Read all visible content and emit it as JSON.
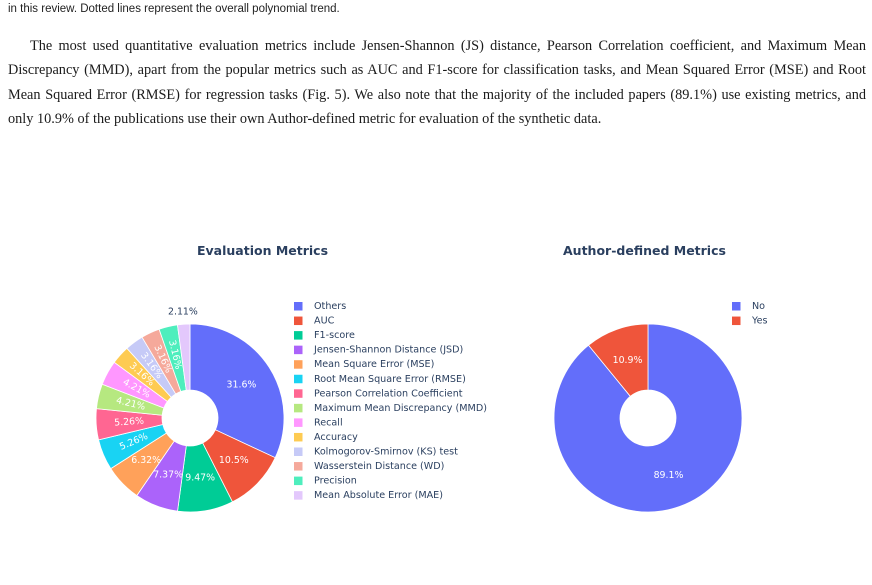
{
  "caption_tail": "in this review. Dotted lines represent the overall polynomial trend.",
  "paragraph": "The most used quantitative evaluation metrics include Jensen-Shannon (JS) distance, Pearson Correlation coefficient, and Maximum Mean Discrepancy (MMD), apart from the popular metrics such as AUC and F1-score for classification tasks, and Mean Squared Error (MSE) and Root Mean Squared Error (RMSE) for regression tasks (Fig. 5). We also note that the majority of the included papers (89.1%) use existing metrics, and only 10.9% of the publications use their own Author-defined metric for evaluation of the synthetic data.",
  "chart_data": [
    {
      "type": "pie",
      "title": "Evaluation Metrics",
      "hole": true,
      "legend_position": "right",
      "slices": [
        {
          "label": "Others",
          "value": 31.6,
          "text": "31.6%",
          "color": "#636efa"
        },
        {
          "label": "AUC",
          "value": 10.5,
          "text": "10.5%",
          "color": "#ef553b"
        },
        {
          "label": "F1-score",
          "value": 9.47,
          "text": "9.47%",
          "color": "#00cc96"
        },
        {
          "label": "Jensen-Shannon Distance (JSD)",
          "value": 7.37,
          "text": "7.37%",
          "color": "#ab63fa"
        },
        {
          "label": "Mean Square Error (MSE)",
          "value": 6.32,
          "text": "6.32%",
          "color": "#ffa15a"
        },
        {
          "label": "Root Mean Square Error (RMSE)",
          "value": 5.26,
          "text": "5.26%",
          "color": "#19d3f3"
        },
        {
          "label": "Pearson Correlation Coefficient",
          "value": 5.26,
          "text": "5.26%",
          "color": "#ff6692"
        },
        {
          "label": "Maximum Mean Discrepancy (MMD)",
          "value": 4.21,
          "text": "4.21%",
          "color": "#b6e880"
        },
        {
          "label": "Recall",
          "value": 4.21,
          "text": "4.21%",
          "color": "#ff97ff"
        },
        {
          "label": "Accuracy",
          "value": 3.16,
          "text": "3.16%",
          "color": "#fecb52"
        },
        {
          "label": "Kolmogorov-Smirnov (KS) test",
          "value": 3.16,
          "text": "3.16%",
          "color": "#c6caf7"
        },
        {
          "label": "Wasserstein Distance (WD)",
          "value": 3.16,
          "text": "3.16%",
          "color": "#f5a99b"
        },
        {
          "label": "Precision",
          "value": 3.16,
          "text": "3.16%",
          "color": "#4eeebd"
        },
        {
          "label": "Mean Absolute Error (MAE)",
          "value": 2.11,
          "text": "2.11%",
          "color": "#e3c8fc"
        }
      ]
    },
    {
      "type": "pie",
      "title": "Author-defined Metrics",
      "hole": true,
      "legend_position": "top-right",
      "slices": [
        {
          "label": "No",
          "value": 89.1,
          "text": "89.1%",
          "color": "#636efa"
        },
        {
          "label": "Yes",
          "value": 10.9,
          "text": "10.9%",
          "color": "#ef553b"
        }
      ]
    }
  ]
}
